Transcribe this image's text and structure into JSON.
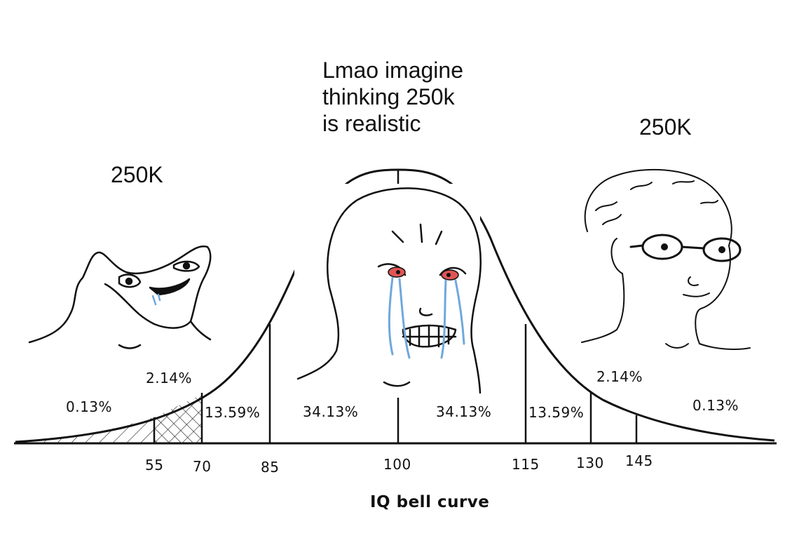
{
  "captions": {
    "center_line1": "Lmao imagine",
    "center_line2": "thinking 250k",
    "center_line3": "is realistic",
    "left": "250K",
    "right": "250K"
  },
  "chart": {
    "percentages": {
      "far_left": "0.13%",
      "left_2": "2.14%",
      "left_13": "13.59%",
      "left_34": "34.13%",
      "right_34": "34.13%",
      "right_13": "13.59%",
      "right_2": "2.14%",
      "far_right": "0.13%"
    },
    "ticks": [
      "55",
      "70",
      "85",
      "100",
      "115",
      "130",
      "145"
    ],
    "xlabel": "IQ bell curve"
  },
  "characters": [
    {
      "name": "brainlet-wojak",
      "position": "left"
    },
    {
      "name": "crying-wojak",
      "position": "center"
    },
    {
      "name": "glasses-wojak",
      "position": "right"
    }
  ],
  "colors": {
    "ink": "#111111",
    "tears": "#6fa8dc",
    "eyes": "#e05555"
  }
}
